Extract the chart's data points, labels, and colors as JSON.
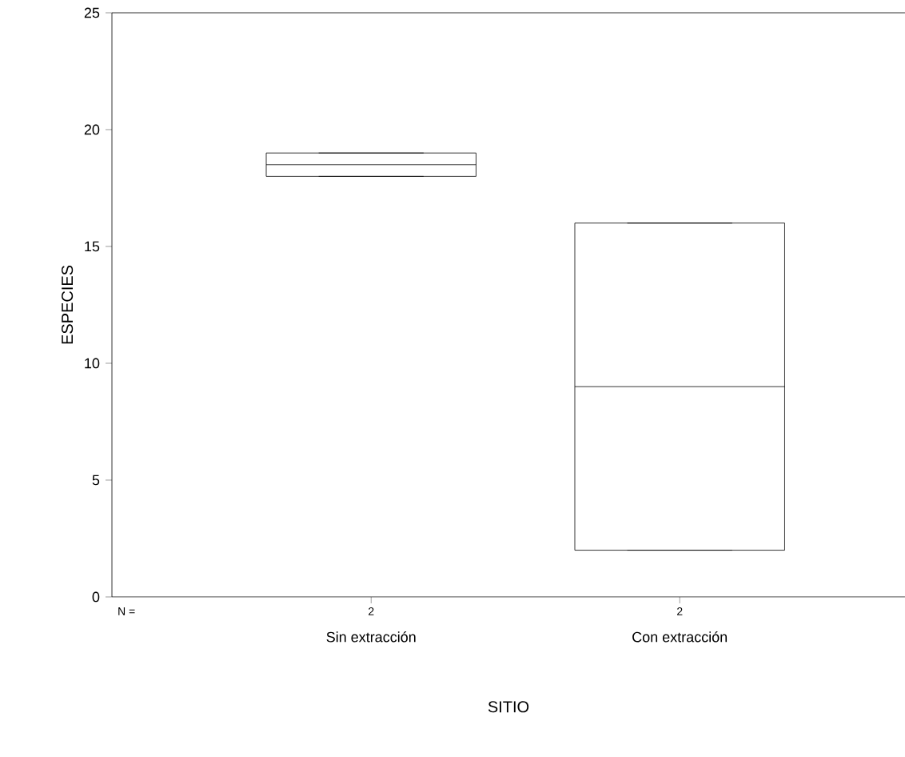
{
  "chart_data": {
    "type": "box",
    "xlabel": "SITIO",
    "ylabel": "ESPECIES",
    "categories": [
      "Sin extracción",
      "Con extracción"
    ],
    "boxes": [
      {
        "low": 18,
        "q1": 18,
        "median": 18.5,
        "q3": 19,
        "high": 19
      },
      {
        "low": 2,
        "q1": 2,
        "median": 9,
        "q3": 16,
        "high": 16
      }
    ],
    "color": "#000000",
    "ylim": [
      0,
      25
    ],
    "yticks": [
      0,
      5,
      10,
      15,
      20,
      25
    ],
    "annotations": [
      "N =",
      "2",
      "2"
    ]
  }
}
